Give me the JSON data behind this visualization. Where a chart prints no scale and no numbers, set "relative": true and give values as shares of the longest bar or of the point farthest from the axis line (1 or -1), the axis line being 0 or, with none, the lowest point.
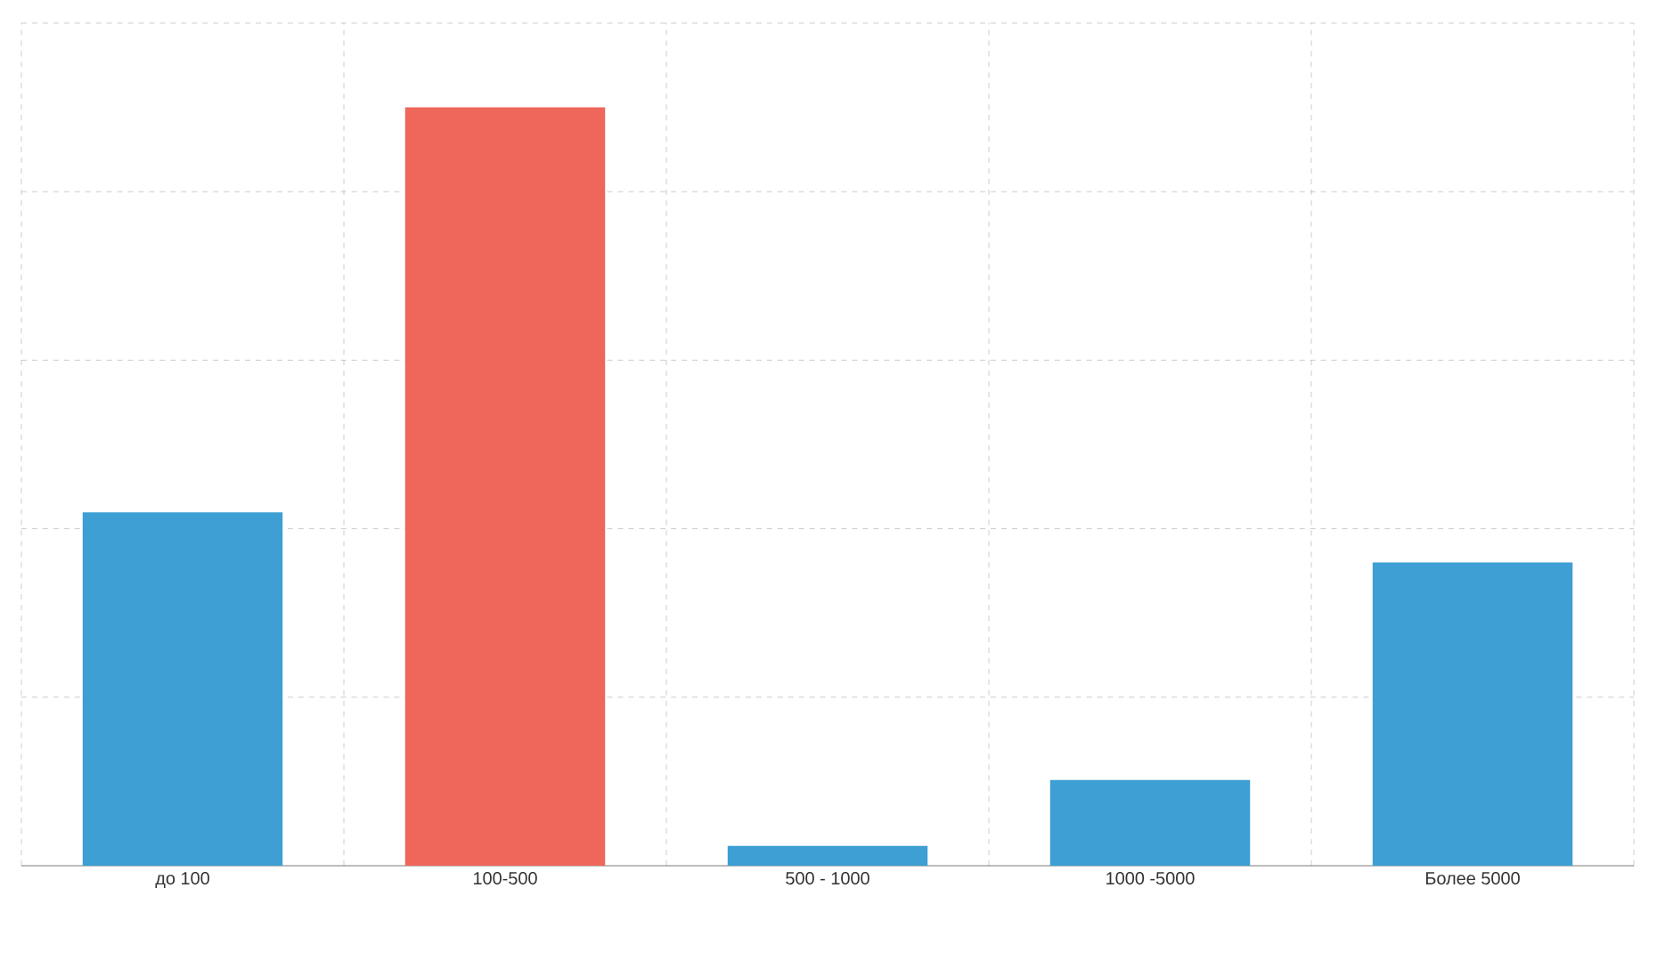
{
  "chart_data": {
    "type": "bar",
    "relative": true,
    "grid": true,
    "categories": [
      "до 100",
      "100-500",
      "500 - 1000",
      "1000 -5000",
      "Более 5000"
    ],
    "values": [
      0.466,
      1,
      0.026,
      0.113,
      0.4
    ],
    "colors": [
      "#3d9fd3",
      "#ef665a",
      "#3d9fd3",
      "#3d9fd3",
      "#3d9fd3"
    ]
  }
}
